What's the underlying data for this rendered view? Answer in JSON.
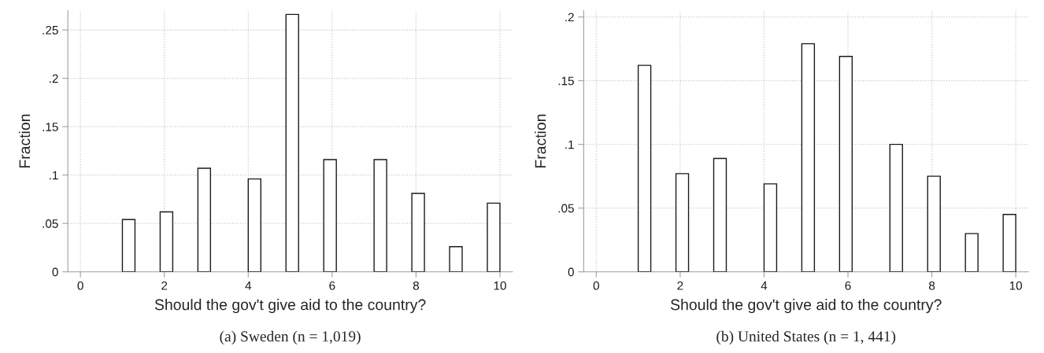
{
  "chart_data": [
    {
      "type": "histogram",
      "xlabel": "Should the gov't give aid to the country?",
      "ylabel": "Fraction",
      "annotations": [
        "(a) Sweden (n = 1,019)"
      ],
      "bins": [
        1,
        1.3,
        1.6,
        1.9,
        2.2,
        2.5,
        2.8,
        3.1,
        3.4,
        3.7,
        4,
        4.3,
        4.6,
        4.9,
        5.2,
        5.5,
        5.8,
        6.1,
        6.4,
        6.7,
        7,
        7.3,
        7.6,
        7.9,
        8.2,
        8.5,
        8.8,
        9.1,
        9.4,
        9.7,
        10
      ],
      "values": [
        0.054,
        0,
        0,
        0.062,
        0,
        0,
        0.107,
        0,
        0,
        0,
        0.096,
        0,
        0,
        0.266,
        0,
        0,
        0.116,
        0,
        0,
        0,
        0.116,
        0,
        0,
        0.081,
        0,
        0,
        0.026,
        0,
        0,
        0.071
      ],
      "color": "#ffffff",
      "xlim": [
        -0.3,
        10.3
      ],
      "ylim": [
        0,
        0.27
      ],
      "xticks": [
        0,
        2,
        4,
        6,
        8,
        10
      ],
      "yticks": [
        {
          "value": 0,
          "label": "0"
        },
        {
          "value": 0.05,
          "label": ".05"
        },
        {
          "value": 0.1,
          "label": ".1"
        },
        {
          "value": 0.15,
          "label": ".15"
        },
        {
          "value": 0.2,
          "label": ".2"
        },
        {
          "value": 0.25,
          "label": ".25"
        }
      ],
      "grid": true
    },
    {
      "type": "histogram",
      "xlabel": "Should the gov't give aid to the country?",
      "ylabel": "Fraction",
      "annotations": [
        "(b) United States (n = 1, 441)"
      ],
      "bins": [
        1,
        1.3,
        1.6,
        1.9,
        2.2,
        2.5,
        2.8,
        3.1,
        3.4,
        3.7,
        4,
        4.3,
        4.6,
        4.9,
        5.2,
        5.5,
        5.8,
        6.1,
        6.4,
        6.7,
        7,
        7.3,
        7.6,
        7.9,
        8.2,
        8.5,
        8.8,
        9.1,
        9.4,
        9.7,
        10
      ],
      "values": [
        0.162,
        0,
        0,
        0.077,
        0,
        0,
        0.089,
        0,
        0,
        0,
        0.069,
        0,
        0,
        0.179,
        0,
        0,
        0.169,
        0,
        0,
        0,
        0.1,
        0,
        0,
        0.075,
        0,
        0,
        0.03,
        0,
        0,
        0.045
      ],
      "color": "#ffffff",
      "xlim": [
        -0.3,
        10.3
      ],
      "ylim": [
        0,
        0.205
      ],
      "xticks": [
        0,
        2,
        4,
        6,
        8,
        10
      ],
      "yticks": [
        {
          "value": 0,
          "label": "0"
        },
        {
          "value": 0.05,
          "label": ".05"
        },
        {
          "value": 0.1,
          "label": ".1"
        },
        {
          "value": 0.15,
          "label": ".15"
        },
        {
          "value": 0.2,
          "label": ".2"
        }
      ],
      "grid": true
    }
  ]
}
